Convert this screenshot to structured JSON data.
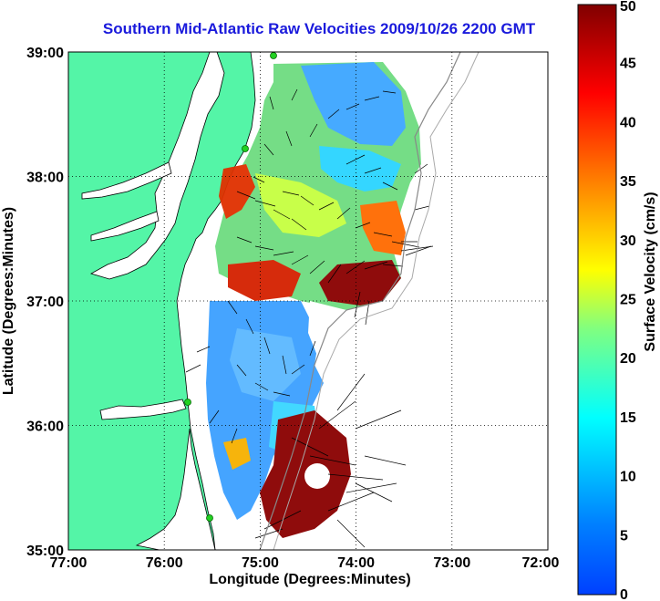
{
  "title": "Southern Mid-Atlantic Raw Velocities 2009/10/26 2200 GMT",
  "map": {
    "xlabel": "Longitude (Degrees:Minutes)",
    "ylabel": "Latitude (Degrees:Minutes)",
    "x_ticks": [
      "77:00",
      "76:00",
      "75:00",
      "74:00",
      "73:00",
      "72:00"
    ],
    "y_ticks": [
      "39:00",
      "38:00",
      "37:00",
      "36:00",
      "35:00"
    ],
    "lon_range": [
      -77,
      -72
    ],
    "lat_range": [
      35,
      39
    ],
    "grid": true,
    "land_color": "#54f5a7",
    "water_color": "#ffffff",
    "coastline_color": "#000000",
    "arrow_color": "#000000",
    "station_color": "#22d022"
  },
  "colorbar": {
    "label": "Surface Velocity (cm/s)",
    "ticks": [
      "0",
      "5",
      "10",
      "15",
      "20",
      "25",
      "30",
      "35",
      "40",
      "45",
      "50"
    ],
    "range": [
      0,
      50
    ],
    "colormap": "jet"
  }
}
